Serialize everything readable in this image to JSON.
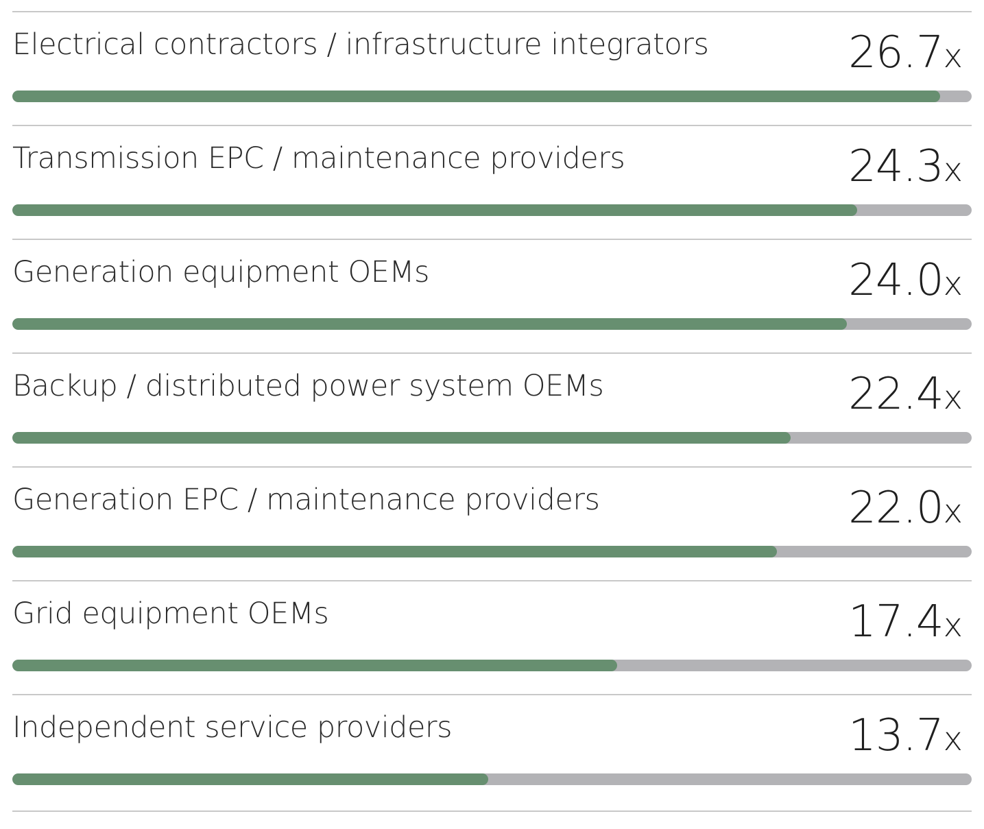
{
  "chart_data": {
    "type": "bar",
    "orientation": "horizontal",
    "unit_suffix": "x",
    "max": 27.6,
    "categories": [
      "Electrical contractors / infrastructure integrators",
      "Transmission EPC / maintenance providers",
      "Generation equipment OEMs",
      "Backup / distributed power system OEMs",
      "Generation EPC / maintenance providers",
      "Grid equipment OEMs",
      "Independent service providers"
    ],
    "values": [
      26.7,
      24.3,
      24.0,
      22.4,
      22.0,
      17.4,
      13.7
    ],
    "value_labels": [
      "26.7",
      "24.3",
      "24.0",
      "22.4",
      "22.0",
      "17.4",
      "13.7"
    ],
    "colors": {
      "fill": "#678f70",
      "track": "#b3b3b6",
      "divider": "#c8c8c8"
    }
  }
}
